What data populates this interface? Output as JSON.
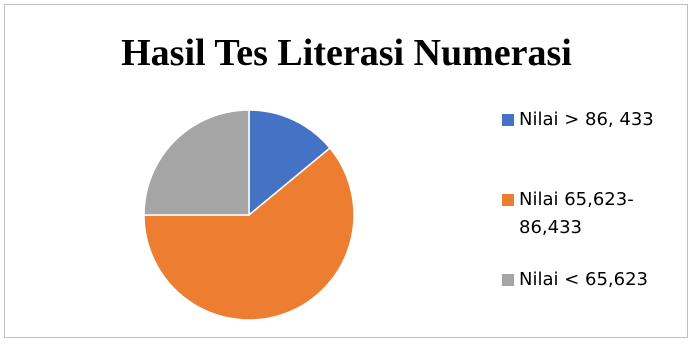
{
  "chart_data": {
    "type": "pie",
    "title": "Hasil Tes Literasi Numerasi",
    "categories": [
      "Nilai > 86, 433",
      "Nilai 65,623-86,433",
      "Nilai < 65,623"
    ],
    "values": [
      14,
      61,
      25
    ],
    "colors": [
      "#4472c4",
      "#ed7d31",
      "#a5a5a5"
    ],
    "legend_position": "right",
    "legend": [
      {
        "label": "Nilai > 86, 433",
        "color": "#4472c4"
      },
      {
        "label": "Nilai 65,623-86,433",
        "color": "#ed7d31"
      },
      {
        "label": "Nilai < 65,623",
        "color": "#a5a5a5"
      }
    ]
  }
}
